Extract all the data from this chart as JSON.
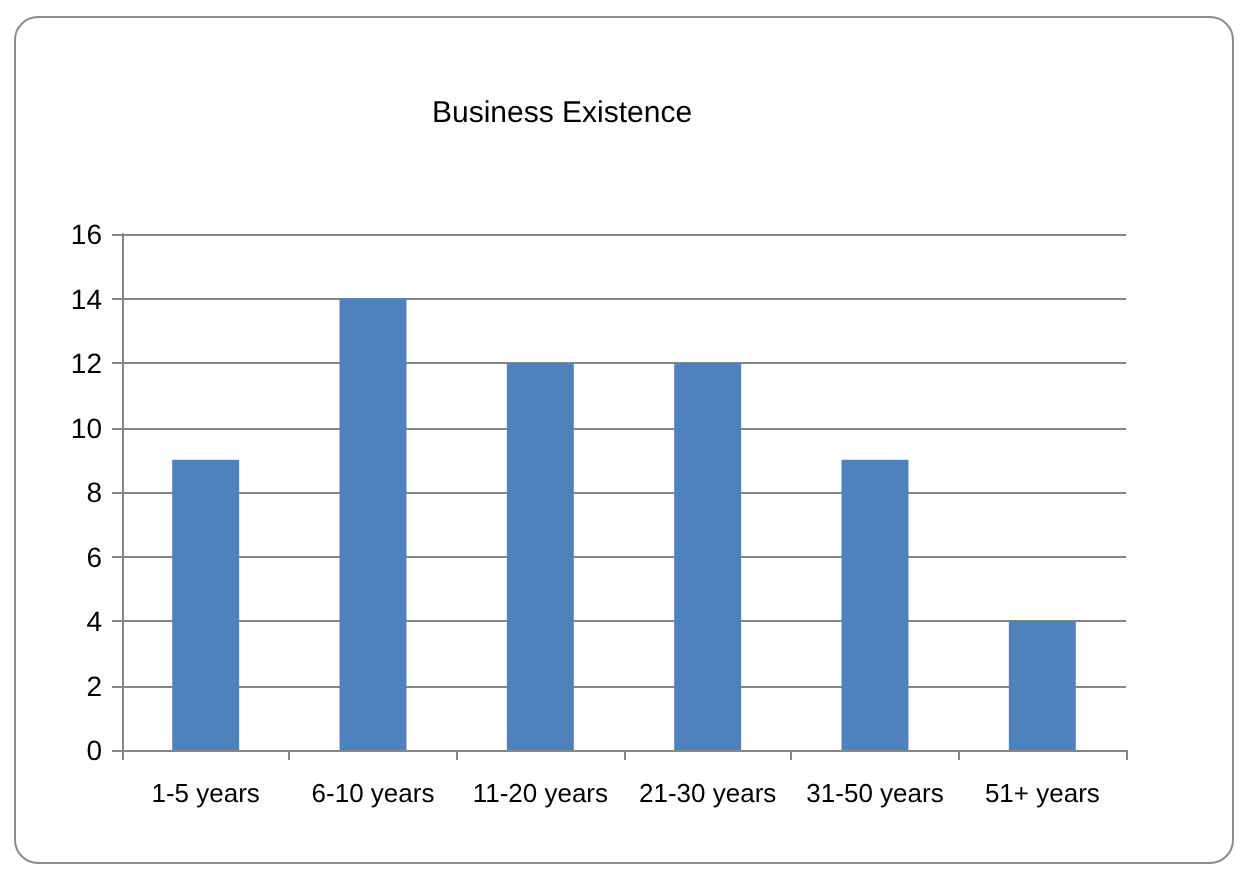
{
  "chart_data": {
    "type": "bar",
    "title": "Business Existence",
    "categories": [
      "1-5 years",
      "6-10 years",
      "11-20 years",
      "21-30 years",
      "31-50 years",
      "51+ years"
    ],
    "values": [
      9,
      14,
      12,
      12,
      9,
      4
    ],
    "color": "#4f81bd",
    "ylim": [
      0,
      16
    ],
    "yticks": [
      0,
      2,
      4,
      6,
      8,
      10,
      12,
      14,
      16
    ],
    "grid": "y"
  }
}
